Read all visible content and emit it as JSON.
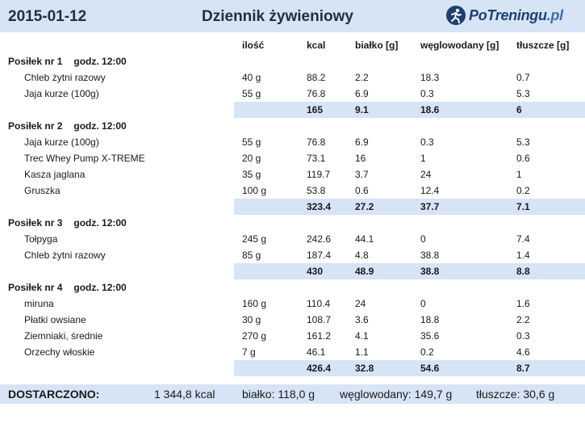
{
  "header": {
    "date": "2015-01-12",
    "title": "Dziennik żywieniowy",
    "logo_text": "PoTreningu",
    "logo_tld": ".pl"
  },
  "columns": [
    "ilość",
    "kcal",
    "białko [g]",
    "węglowodany [g]",
    "tłuszcze [g]"
  ],
  "meals": [
    {
      "name": "Posiłek nr 1",
      "time": "godz. 12:00",
      "items": [
        [
          "Chleb żytni razowy",
          "40 g",
          "88.2",
          "2.2",
          "18.3",
          "0.7"
        ],
        [
          "Jaja kurze (100g)",
          "55 g",
          "76.8",
          "6.9",
          "0.3",
          "5.3"
        ]
      ],
      "totals": [
        "165",
        "9.1",
        "18.6",
        "6"
      ]
    },
    {
      "name": "Posiłek nr 2",
      "time": "godz. 12:00",
      "items": [
        [
          "Jaja kurze (100g)",
          "55 g",
          "76.8",
          "6.9",
          "0.3",
          "5.3"
        ],
        [
          "Trec Whey Pump X-TREME",
          "20 g",
          "73.1",
          "16",
          "1",
          "0.6"
        ],
        [
          "Kasza jaglana",
          "35 g",
          "119.7",
          "3.7",
          "24",
          "1"
        ],
        [
          "Gruszka",
          "100 g",
          "53.8",
          "0.6",
          "12.4",
          "0.2"
        ]
      ],
      "totals": [
        "323.4",
        "27.2",
        "37.7",
        "7.1"
      ]
    },
    {
      "name": "Posiłek nr 3",
      "time": "godz. 12:00",
      "items": [
        [
          "Tołpyga",
          "245 g",
          "242.6",
          "44.1",
          "0",
          "7.4"
        ],
        [
          "Chleb żytni razowy",
          "85 g",
          "187.4",
          "4.8",
          "38.8",
          "1.4"
        ]
      ],
      "totals": [
        "430",
        "48.9",
        "38.8",
        "8.8"
      ]
    },
    {
      "name": "Posiłek nr 4",
      "time": "godz. 12:00",
      "items": [
        [
          "miruna",
          "160 g",
          "110.4",
          "24",
          "0",
          "1.6"
        ],
        [
          "Płatki owsiane",
          "30 g",
          "108.7",
          "3.6",
          "18.8",
          "2.2"
        ],
        [
          "Ziemniaki, średnie",
          "270 g",
          "161.2",
          "4.1",
          "35.6",
          "0.3"
        ],
        [
          "Orzechy włoskie",
          "7 g",
          "46.1",
          "1.1",
          "0.2",
          "4.6"
        ]
      ],
      "totals": [
        "426.4",
        "32.8",
        "54.6",
        "8.7"
      ]
    }
  ],
  "footer": {
    "label": "DOSTARCZONO:",
    "kcal": "1 344,8 kcal",
    "protein": "białko: 118,0 g",
    "carbs": "węglowodany: 149,7 g",
    "fat": "tłuszcze: 30,6 g"
  },
  "colors": {
    "header_bg": "#d6e4f5",
    "sum_bg": "#d6e4f5",
    "title": "#1f2f45"
  }
}
